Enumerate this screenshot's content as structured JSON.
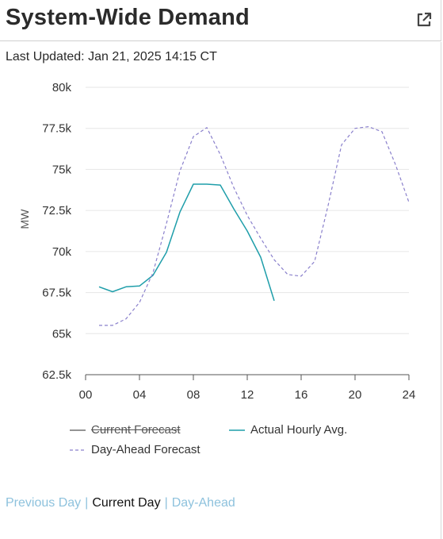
{
  "header": {
    "title": "System-Wide Demand",
    "popout_icon": "external-link-icon"
  },
  "last_updated": "Last Updated: Jan 21, 2025 14:15 CT",
  "colors": {
    "current_forecast": "#555555",
    "actual": "#1f9eaa",
    "day_ahead": "#8a80cc",
    "grid": "#e6e6e6",
    "link": "#8ec2dd"
  },
  "chart_data": {
    "type": "line",
    "title": "",
    "xlabel": "",
    "ylabel": "MW",
    "xlim": [
      0,
      24
    ],
    "ylim": [
      62500,
      80000
    ],
    "x_ticks": [
      0,
      4,
      8,
      12,
      16,
      20,
      24
    ],
    "x_tick_labels": [
      "00",
      "04",
      "08",
      "12",
      "16",
      "20",
      "24"
    ],
    "y_ticks": [
      62500,
      65000,
      67500,
      70000,
      72500,
      75000,
      77500,
      80000
    ],
    "y_tick_labels": [
      "62.5k",
      "65k",
      "67.5k",
      "70k",
      "72.5k",
      "75k",
      "77.5k",
      "80k"
    ],
    "grid": "horizontal",
    "legend_position": "bottom",
    "series": [
      {
        "name": "Current Forecast",
        "style": "solid",
        "hidden": true,
        "x": [],
        "y": []
      },
      {
        "name": "Actual Hourly Avg.",
        "style": "solid",
        "x": [
          1,
          2,
          3,
          4,
          5,
          6,
          7,
          8,
          9,
          10,
          11,
          12,
          13,
          14
        ],
        "y": [
          67850,
          67550,
          67850,
          67900,
          68550,
          69950,
          72400,
          74100,
          74100,
          74050,
          72600,
          71250,
          69650,
          67000
        ]
      },
      {
        "name": "Day-Ahead Forecast",
        "style": "dashed",
        "x": [
          1,
          2,
          3,
          4,
          5,
          6,
          7,
          8,
          9,
          10,
          11,
          12,
          13,
          14,
          15,
          16,
          17,
          18,
          19,
          20,
          21,
          22,
          23,
          24
        ],
        "y": [
          65500,
          65500,
          65900,
          66900,
          68700,
          71700,
          74900,
          77000,
          77550,
          75900,
          73900,
          72200,
          70800,
          69500,
          68600,
          68500,
          69400,
          72800,
          76500,
          77500,
          77600,
          77300,
          75300,
          73000
        ]
      }
    ]
  },
  "legend": {
    "current_forecast": "Current Forecast",
    "actual": "Actual Hourly Avg.",
    "day_ahead": "Day-Ahead Forecast"
  },
  "views": {
    "previous": "Previous Day",
    "current": "Current Day",
    "next": "Day-Ahead",
    "separator": "|"
  }
}
